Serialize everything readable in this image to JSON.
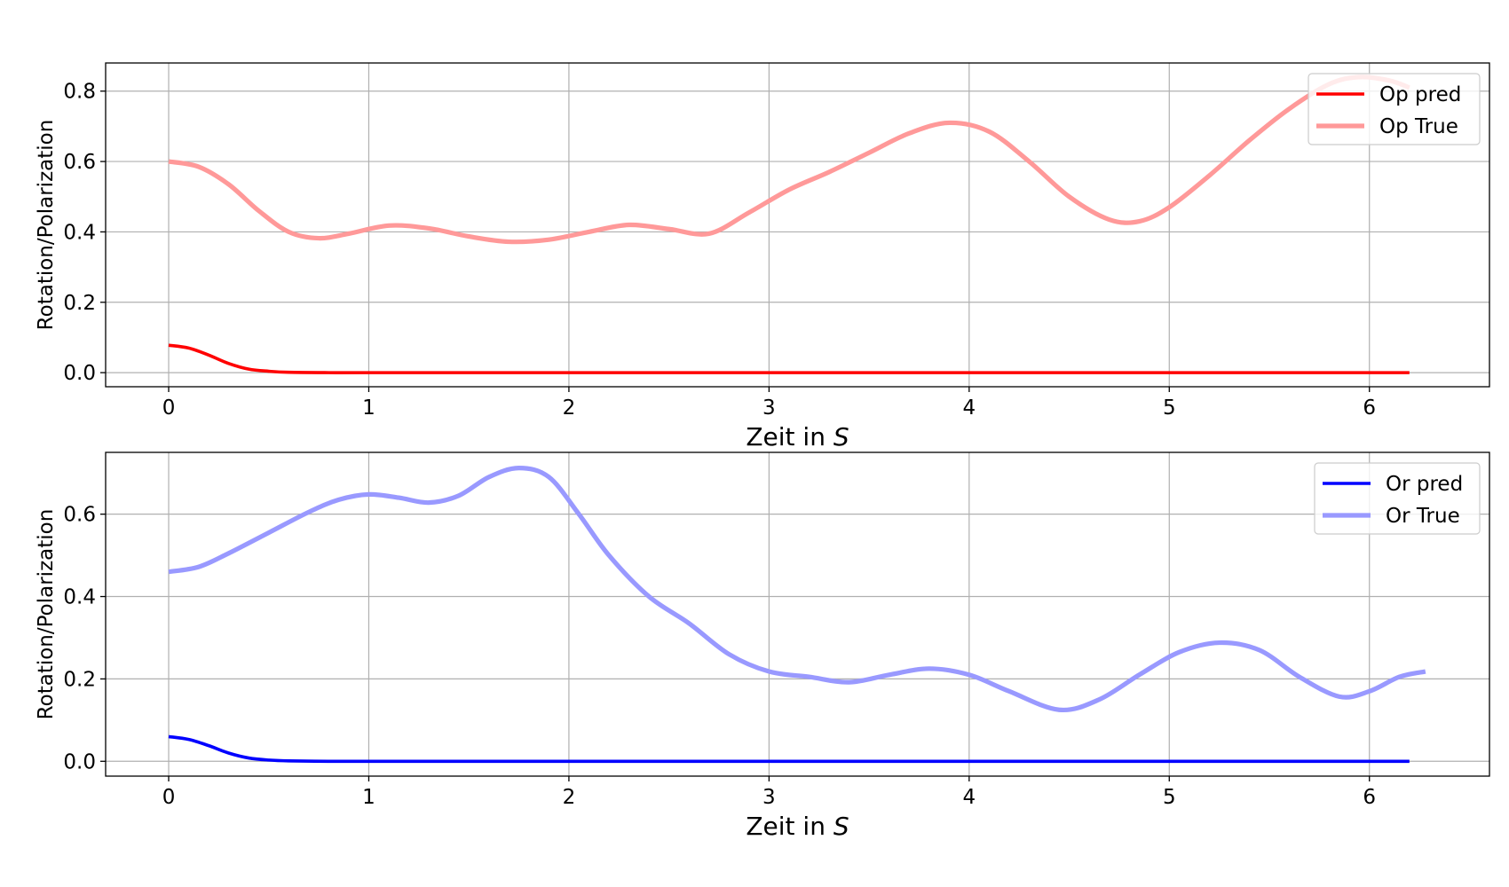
{
  "chart_data": [
    {
      "type": "line",
      "xlabel_prefix": "Zeit in ",
      "xlabel_var": "S",
      "ylabel": "Rotation/Polarization",
      "xlim": [
        -0.315,
        6.6
      ],
      "ylim": [
        -0.04,
        0.88
      ],
      "x_ticks": [
        0,
        1,
        2,
        3,
        4,
        5,
        6
      ],
      "x_tick_labels": [
        "0",
        "1",
        "2",
        "3",
        "4",
        "5",
        "6"
      ],
      "y_ticks": [
        0.0,
        0.2,
        0.4,
        0.6,
        0.8
      ],
      "y_tick_labels": [
        "0.0",
        "0.2",
        "0.4",
        "0.6",
        "0.8"
      ],
      "grid": true,
      "legend_position": "top-right",
      "series": [
        {
          "name": "Op pred",
          "color": "#ff0000",
          "opacity": 1,
          "x": [
            0,
            0.1,
            0.2,
            0.3,
            0.4,
            0.5,
            0.6,
            0.8,
            1.0,
            2.0,
            3.0,
            4.0,
            5.0,
            6.0,
            6.2
          ],
          "y": [
            0.078,
            0.07,
            0.05,
            0.026,
            0.01,
            0.004,
            0.001,
            0.0,
            0.0,
            0.0,
            0.0,
            0.0,
            0.0,
            0.0,
            0.0
          ]
        },
        {
          "name": "Op True",
          "color": "#ff9999",
          "opacity": 1,
          "x": [
            0,
            0.15,
            0.3,
            0.45,
            0.6,
            0.75,
            0.9,
            1.1,
            1.3,
            1.5,
            1.7,
            1.9,
            2.1,
            2.3,
            2.5,
            2.7,
            2.9,
            3.1,
            3.3,
            3.5,
            3.7,
            3.9,
            4.1,
            4.3,
            4.5,
            4.7,
            4.85,
            5.0,
            5.2,
            5.4,
            5.6,
            5.8,
            5.95,
            6.1,
            6.2
          ],
          "y": [
            0.6,
            0.585,
            0.535,
            0.46,
            0.4,
            0.382,
            0.395,
            0.418,
            0.41,
            0.387,
            0.372,
            0.378,
            0.4,
            0.42,
            0.408,
            0.395,
            0.455,
            0.52,
            0.57,
            0.625,
            0.68,
            0.71,
            0.685,
            0.6,
            0.5,
            0.435,
            0.43,
            0.47,
            0.56,
            0.66,
            0.75,
            0.82,
            0.84,
            0.83,
            0.81
          ]
        }
      ]
    },
    {
      "type": "line",
      "xlabel_prefix": "Zeit in ",
      "xlabel_var": "S",
      "ylabel": "Rotation/Polarization",
      "xlim": [
        -0.315,
        6.6
      ],
      "ylim": [
        -0.036,
        0.75
      ],
      "x_ticks": [
        0,
        1,
        2,
        3,
        4,
        5,
        6
      ],
      "x_tick_labels": [
        "0",
        "1",
        "2",
        "3",
        "4",
        "5",
        "6"
      ],
      "y_ticks": [
        0.0,
        0.2,
        0.4,
        0.6
      ],
      "y_tick_labels": [
        "0.0",
        "0.2",
        "0.4",
        "0.6"
      ],
      "grid": true,
      "legend_position": "top-right",
      "series": [
        {
          "name": "Or pred",
          "color": "#0000ff",
          "opacity": 1,
          "x": [
            0,
            0.1,
            0.2,
            0.3,
            0.4,
            0.5,
            0.6,
            0.8,
            1.0,
            2.0,
            3.0,
            4.0,
            5.0,
            6.0,
            6.2
          ],
          "y": [
            0.06,
            0.053,
            0.038,
            0.02,
            0.008,
            0.003,
            0.001,
            0.0,
            0.0,
            0.0,
            0.0,
            0.0,
            0.0,
            0.0,
            0.0
          ]
        },
        {
          "name": "Or True",
          "color": "#9999ff",
          "opacity": 1,
          "x": [
            0,
            0.15,
            0.3,
            0.5,
            0.7,
            0.85,
            1.0,
            1.15,
            1.3,
            1.45,
            1.6,
            1.75,
            1.9,
            2.05,
            2.2,
            2.4,
            2.6,
            2.8,
            3.0,
            3.2,
            3.4,
            3.6,
            3.8,
            4.0,
            4.2,
            4.45,
            4.65,
            4.85,
            5.05,
            5.25,
            5.45,
            5.65,
            5.85,
            6.0,
            6.15,
            6.28
          ],
          "y": [
            0.46,
            0.472,
            0.505,
            0.555,
            0.605,
            0.635,
            0.648,
            0.64,
            0.628,
            0.645,
            0.69,
            0.712,
            0.69,
            0.6,
            0.5,
            0.4,
            0.335,
            0.26,
            0.218,
            0.205,
            0.192,
            0.21,
            0.225,
            0.21,
            0.17,
            0.125,
            0.15,
            0.21,
            0.265,
            0.288,
            0.27,
            0.205,
            0.157,
            0.17,
            0.205,
            0.218
          ]
        }
      ]
    }
  ]
}
